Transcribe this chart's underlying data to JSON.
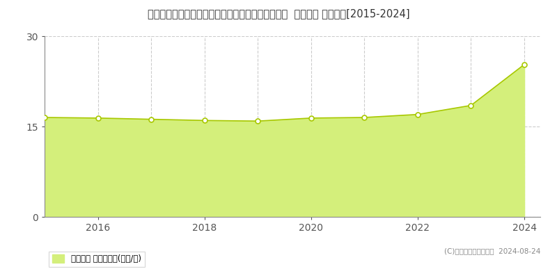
{
  "title": "北海道札幌市西区宮の沢３条５丁目４８７番１４６  地価公示 地価推移[2015-2024]",
  "x_data": [
    2015,
    2016,
    2017,
    2018,
    2019,
    2020,
    2021,
    2022,
    2023,
    2024
  ],
  "y_data": [
    16.5,
    16.4,
    16.2,
    16.0,
    15.9,
    16.4,
    16.5,
    17.0,
    18.5,
    25.3
  ],
  "ylim": [
    0,
    30
  ],
  "yticks": [
    0,
    15,
    30
  ],
  "xlim": [
    2015,
    2024.3
  ],
  "xticks": [
    2016,
    2018,
    2020,
    2022,
    2024
  ],
  "fill_color": "#d4ef7b",
  "line_color": "#a8c800",
  "marker_facecolor": "#ffffff",
  "marker_edgecolor": "#a8c800",
  "bg_color": "#ffffff",
  "grid_color": "#cccccc",
  "vgrid_years": [
    2016,
    2017,
    2018,
    2019,
    2020,
    2021,
    2022,
    2023,
    2024
  ],
  "copyright_text": "(C)土地価格ドットコム  2024-08-24",
  "legend_label": "地価公示 平均坪単価(万円/坪)"
}
